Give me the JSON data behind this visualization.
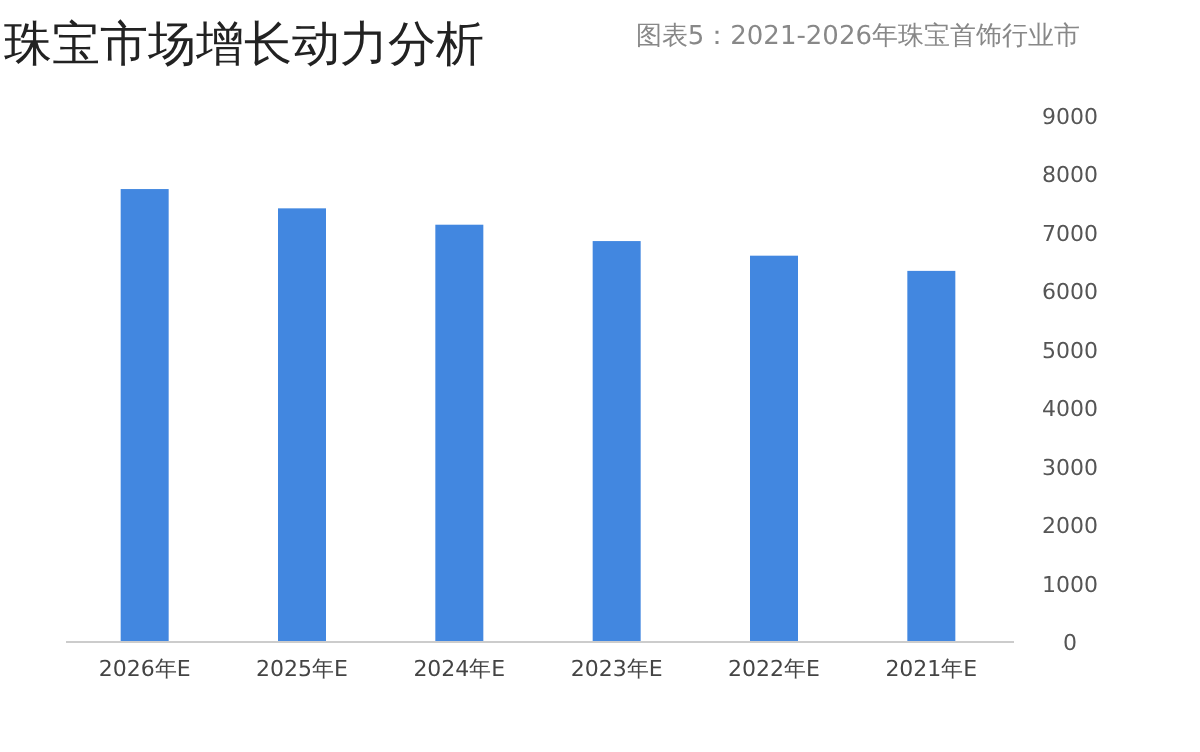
{
  "chart_data": {
    "type": "bar",
    "title": "珠宝市场增长动力分析",
    "subtitle": "图表5：2021-2026年珠宝首饰行业市",
    "categories": [
      "2026年E",
      "2025年E",
      "2024年E",
      "2023年E",
      "2022年E",
      "2021年E"
    ],
    "values": [
      7750,
      7420,
      7140,
      6860,
      6610,
      6350
    ],
    "color": "#4287e0",
    "ylim": [
      0,
      9000
    ],
    "yticks": [
      0,
      1000,
      2000,
      3000,
      4000,
      5000,
      6000,
      7000,
      8000,
      9000
    ],
    "grid": false
  }
}
